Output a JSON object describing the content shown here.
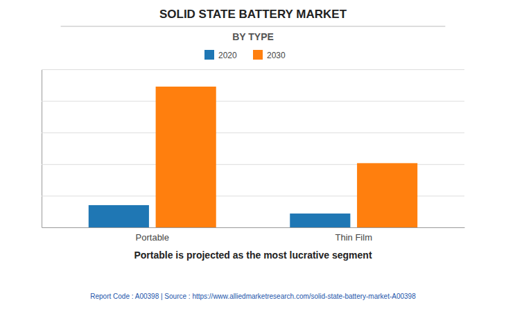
{
  "chart_data": {
    "type": "bar",
    "title": "SOLID STATE BATTERY MARKET",
    "subtitle": "BY TYPE",
    "categories": [
      "Portable",
      "Thin Film"
    ],
    "series": [
      {
        "name": "2020",
        "values": [
          0.45,
          0.28
        ]
      },
      {
        "name": "2030",
        "values": [
          2.85,
          1.3
        ]
      }
    ],
    "ylim": [
      0,
      3.2
    ],
    "yticks": [
      0,
      0.64,
      1.28,
      1.92,
      2.56,
      3.2
    ],
    "grid": true,
    "legend": "top",
    "tick_labels": "x",
    "annotations": [
      "Portable is projected as the most lucrative segment",
      "Report Code : A00398  |  Source : https://www.alliedmarketresearch.com/solid-state-battery-market-A00398"
    ]
  }
}
